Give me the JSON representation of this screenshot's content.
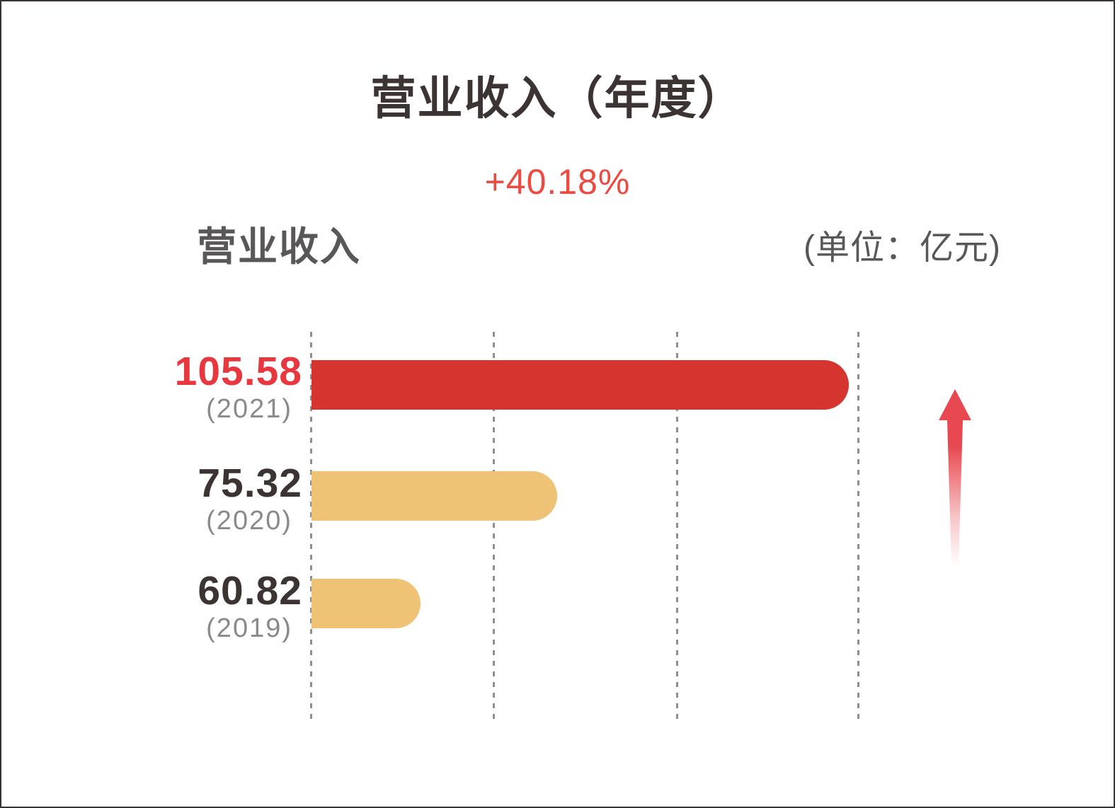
{
  "header": {
    "title": "营业收入（年度）",
    "growth": "+40.18%",
    "series_label": "营业收入",
    "unit_label": "(单位：亿元)"
  },
  "colors": {
    "accent_red": "#d6342e",
    "accent_tan": "#eec375",
    "value_red": "#e8383f",
    "value_dark": "#3b3432",
    "growth_red": "#ec4b42",
    "arrow_red": "#e8484f",
    "label_gray": "#595757",
    "year_gray": "#8a8a8a",
    "grid_gray": "#8f8f8f",
    "frame_border": "#3a3335"
  },
  "chart_data": {
    "type": "bar",
    "orientation": "horizontal",
    "title": "营业收入（年度）",
    "subtitle_growth_yoy": "+40.18%",
    "series_name": "营业收入",
    "unit": "亿元",
    "xlabel": "",
    "ylabel": "",
    "categories": [
      "2021",
      "2020",
      "2019"
    ],
    "values": [
      105.58,
      75.32,
      60.82
    ],
    "value_labels": [
      "105.58",
      "75.32",
      "60.82"
    ],
    "year_labels": [
      "(2021)",
      "(2020)",
      "(2019)"
    ],
    "bar_colors": [
      "#d6342e",
      "#eec375",
      "#eec375"
    ],
    "value_label_colors": [
      "#e8383f",
      "#3b3432",
      "#3b3432"
    ],
    "bar_length_frac": [
      0.982,
      0.449,
      0.199
    ],
    "gridline_count": 4,
    "grid": "dashed-vertical",
    "legend_position": "none",
    "annotation": "upward trend arrow at right"
  }
}
